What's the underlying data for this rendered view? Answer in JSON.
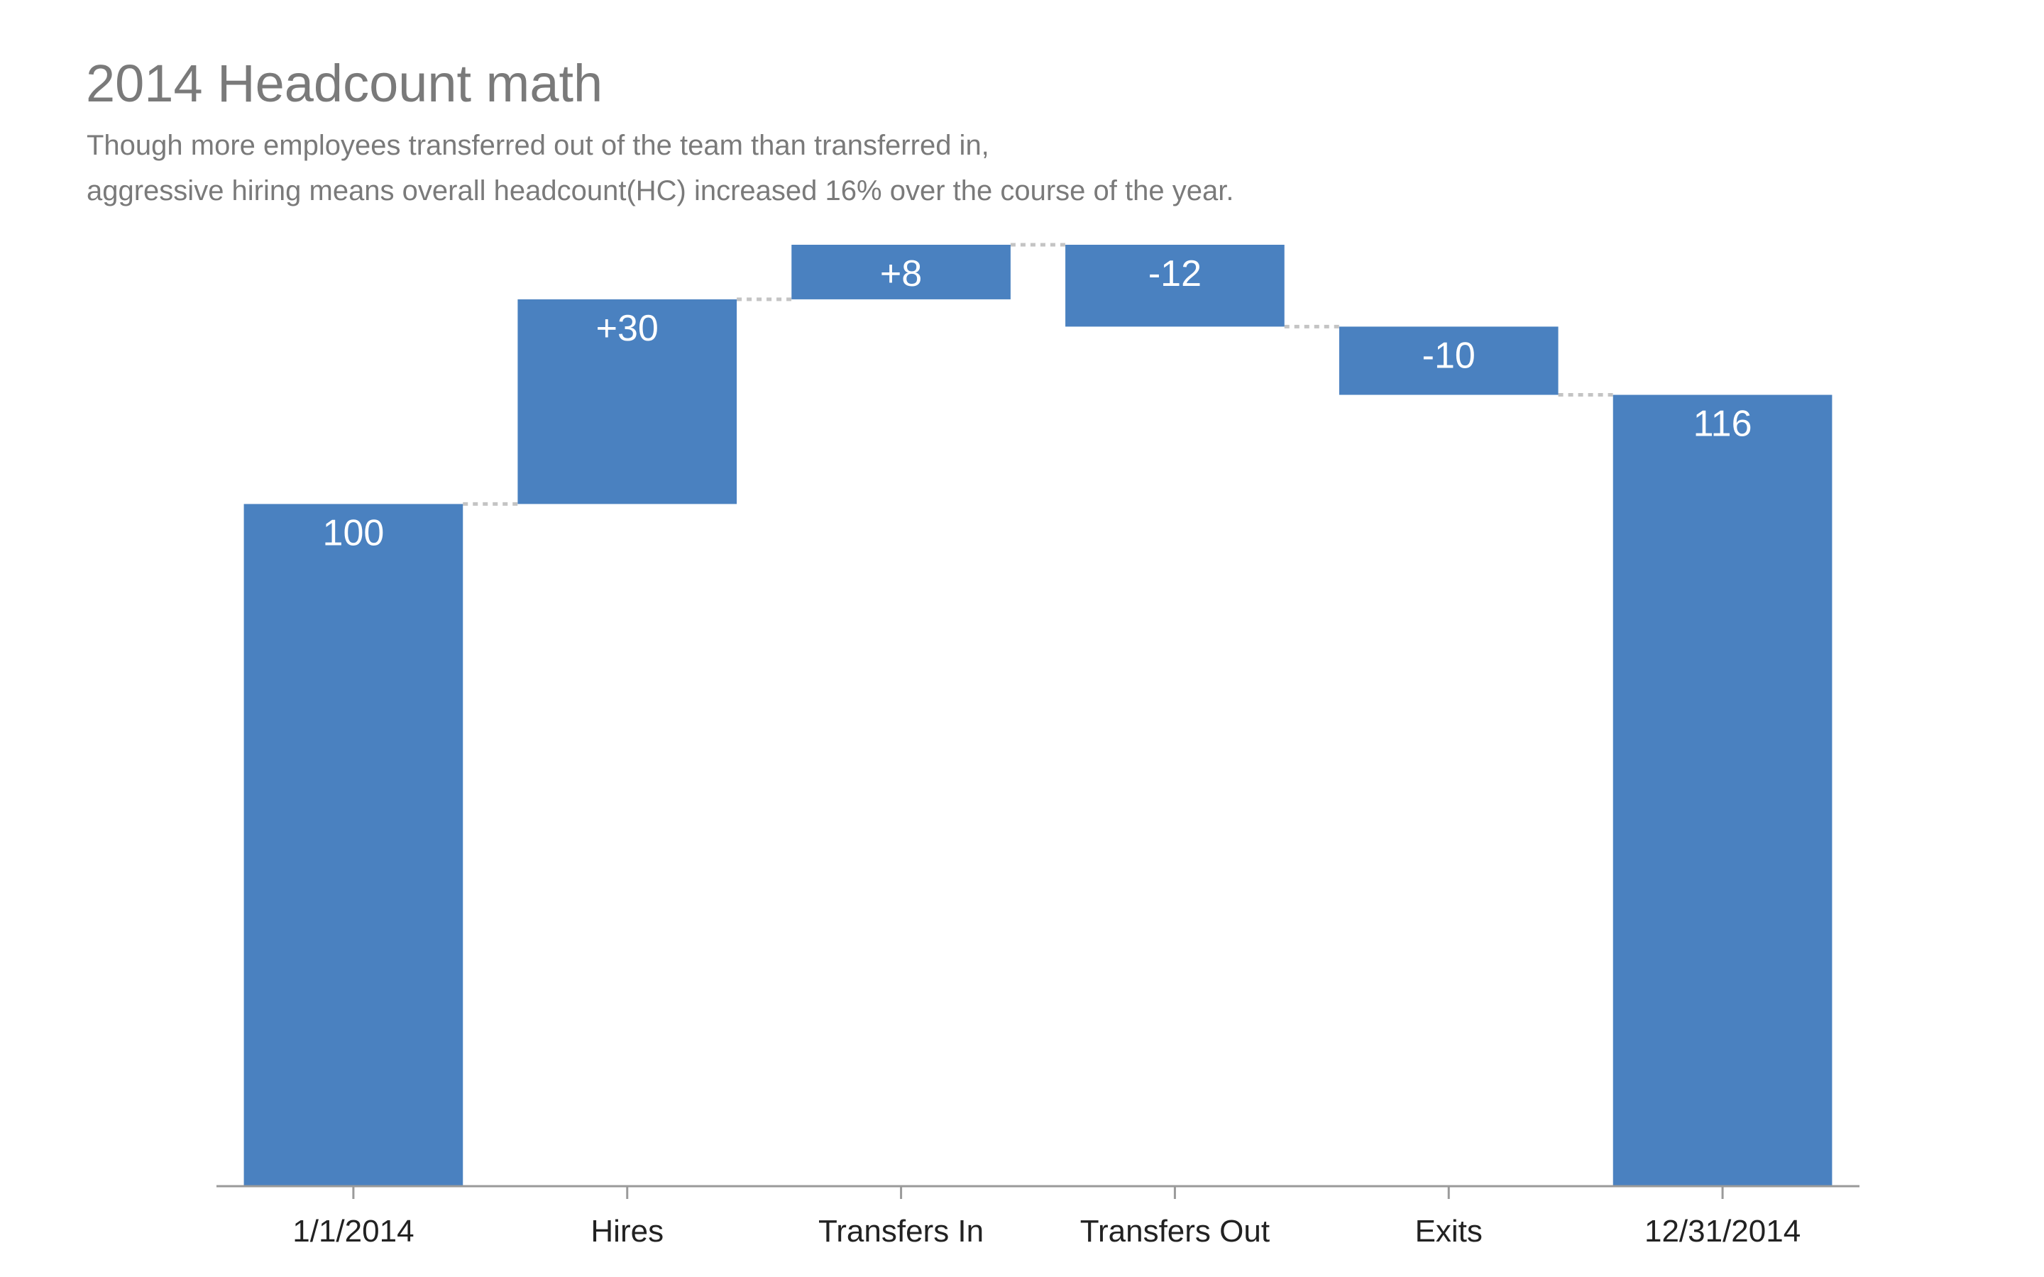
{
  "header": {
    "title": "2014 Headcount math",
    "subtitle_line1": "Though more employees transferred out of the team than transferred in,",
    "subtitle_line2": "aggressive hiring means overall headcount(HC) increased 16% over the course of the year."
  },
  "colors": {
    "bar": "#4a81c0",
    "connector": "#c4c4c4",
    "axis": "#9a9a9a",
    "title_text": "#7a7a7a",
    "tick_text": "#222222",
    "label_text": "#ffffff"
  },
  "chart_data": {
    "type": "bar",
    "variant": "waterfall",
    "title": "2014 Headcount math",
    "subtitle": "Though more employees transferred out of the team than transferred in, aggressive hiring means overall headcount(HC) increased 16% over the course of the year.",
    "xlabel": "",
    "ylabel": "",
    "categories": [
      "1/1/2014",
      "Hires",
      "Transfers In",
      "Transfers Out",
      "Exits",
      "12/31/2014"
    ],
    "values": [
      100,
      30,
      8,
      -12,
      -10,
      116
    ],
    "bar_kind": [
      "total",
      "delta",
      "delta",
      "delta",
      "delta",
      "total"
    ],
    "data_labels": [
      "100",
      "+30",
      "+8",
      "-12",
      "-10",
      "116"
    ],
    "ylim": [
      0,
      138
    ],
    "y_axis_visible": false,
    "grid": false,
    "legend": "none"
  }
}
